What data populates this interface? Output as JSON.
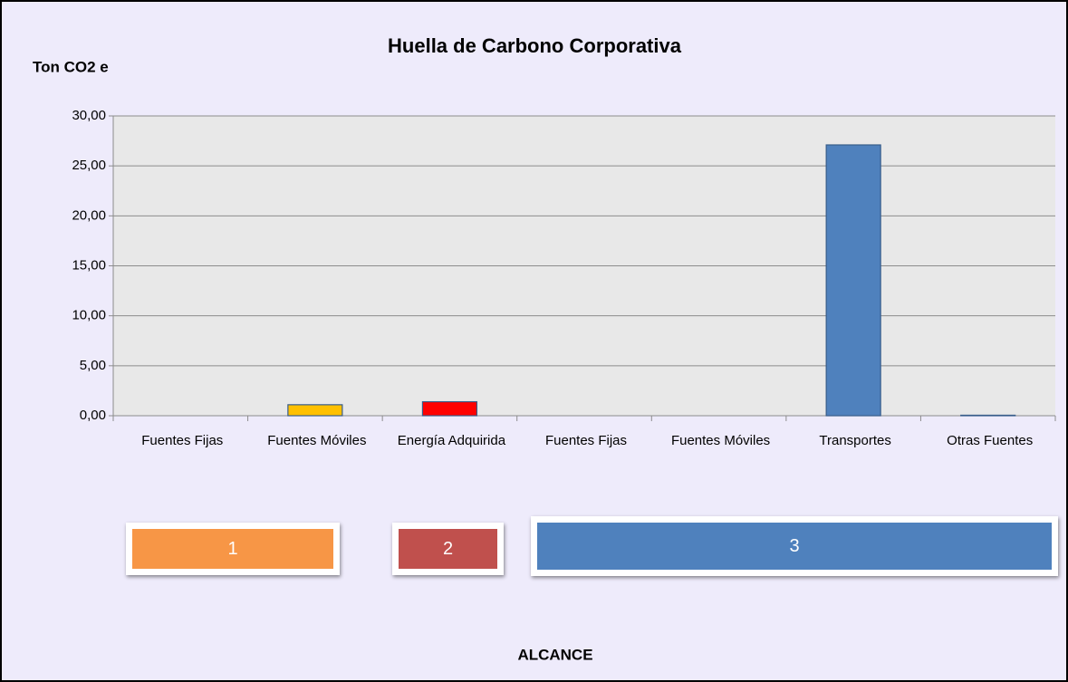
{
  "chart_data": {
    "type": "bar",
    "title": "Huella de Carbono Corporativa",
    "y_label": "Ton CO2 e",
    "x_label": "ALCANCE",
    "categories": [
      "Fuentes Fijas",
      "Fuentes Móviles",
      "Energía Adquirida",
      "Fuentes Fijas",
      "Fuentes Móviles",
      "Transportes",
      "Otras Fuentes"
    ],
    "values": [
      0,
      1.1,
      1.4,
      0,
      0,
      27.1,
      0.05
    ],
    "colors": [
      "#4f81bd",
      "#ffc000",
      "#ff0000",
      "#4f81bd",
      "#4f81bd",
      "#4f81bd",
      "#4f81bd"
    ],
    "ylim": [
      0,
      30
    ],
    "yticks": [
      {
        "value": 0,
        "label": "0,00"
      },
      {
        "value": 5,
        "label": "5,00"
      },
      {
        "value": 10,
        "label": "10,00"
      },
      {
        "value": 15,
        "label": "15,00"
      },
      {
        "value": 20,
        "label": "20,00"
      },
      {
        "value": 25,
        "label": "25,00"
      },
      {
        "value": 30,
        "label": "30,00"
      }
    ],
    "grid": true,
    "scopes": [
      {
        "label": "1",
        "color": "#f79646"
      },
      {
        "label": "2",
        "color": "#c0504d"
      },
      {
        "label": "3",
        "color": "#4f81bd"
      }
    ]
  }
}
